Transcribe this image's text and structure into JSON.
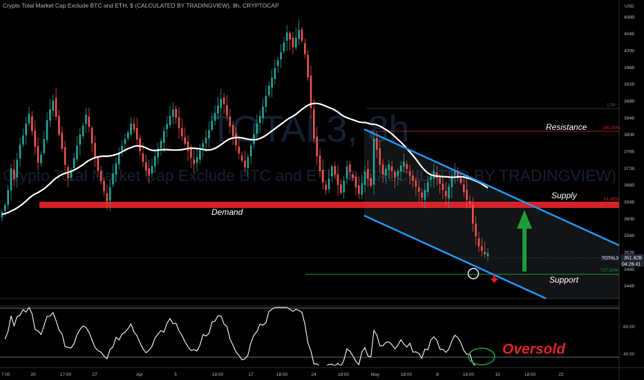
{
  "header": {
    "chart_title": "Crypto Total Market Cap Exclude BTC and ETH, $ (CALCULATED BY TRADINGVIEW), 8h, CRYPTOCAP"
  },
  "watermark": {
    "symbol": "TOTAL3, 8h",
    "description": "Crypto Total Market Cap Exclude BTC and ETH, $ (CALCULATED BY TRADINGVIEW)"
  },
  "annotations": {
    "resistance": "Resistance",
    "supply": "Supply",
    "demand": "Demand",
    "support": "Support",
    "oversold": "Oversold"
  },
  "price_badge": {
    "symbol": "TOTAL3",
    "value": "351.82B",
    "countdown": "04:26:41"
  },
  "fib_labels": {
    "top": "1.00",
    "level_100": "100.00%",
    "level_618": "61.80%",
    "level_727": "727.20%"
  },
  "colors": {
    "background": "#000000",
    "up_candle": "#26a69a",
    "down_candle": "#ef5350",
    "moving_average": "#ffffff",
    "channel": "#2196f3",
    "demand_zone": "#e0232a",
    "up_arrow": "#1b9e3a",
    "oversold": "#e0232a",
    "axis_text": "#b2b5be"
  },
  "chart_data": {
    "type": "candlestick",
    "symbol": "TOTAL3",
    "timeframe": "8h",
    "y_axis": {
      "unit": "USD",
      "range": [
        341,
        412
      ],
      "ticks": [
        "408B",
        "404B",
        "400B",
        "396B",
        "392B",
        "388B",
        "384B",
        "380B",
        "376B",
        "372B",
        "368B",
        "364B",
        "360B",
        "356B",
        "352B",
        "348B",
        "344B"
      ]
    },
    "x_axis": {
      "ticks": [
        "7:00",
        "20",
        "17:00",
        "27",
        "Apr",
        "5",
        "18:00",
        "17",
        "18:00",
        "24",
        "18:00",
        "May",
        "18:00",
        "8",
        "18:00",
        "15",
        "18:00",
        "22"
      ]
    },
    "levels": {
      "resistance": 381.5,
      "supply_demand": 364.5,
      "support": 348.3,
      "current_price": 351.82
    },
    "candles_close": [
      361.5,
      363.2,
      366.8,
      371.9,
      369.4,
      374.0,
      377.6,
      379.8,
      382.6,
      384.9,
      380.8,
      377.1,
      373.3,
      375.2,
      378.9,
      383.4,
      386.0,
      388.1,
      384.2,
      380.0,
      376.6,
      372.8,
      369.6,
      371.5,
      374.4,
      377.3,
      380.0,
      382.1,
      384.7,
      381.8,
      377.9,
      374.6,
      371.4,
      368.9,
      366.5,
      364.1,
      367.5,
      370.8,
      373.2,
      375.6,
      377.3,
      378.9,
      380.5,
      382.6,
      381.2,
      378.8,
      376.0,
      373.5,
      371.4,
      370.2,
      372.5,
      374.8,
      376.7,
      378.5,
      380.8,
      382.5,
      384.4,
      385.9,
      384.0,
      381.5,
      379.6,
      377.8,
      376.1,
      374.5,
      373.0,
      374.6,
      376.3,
      377.9,
      379.2,
      381.0,
      383.3,
      385.1,
      386.9,
      388.5,
      387.2,
      384.5,
      381.9,
      379.6,
      377.4,
      375.5,
      373.8,
      372.2,
      374.6,
      377.4,
      380.1,
      382.6,
      384.4,
      386.6,
      389.2,
      391.6,
      393.5,
      395.8,
      397.7,
      399.6,
      401.9,
      404.3,
      402.6,
      400.8,
      403.0,
      404.9,
      402.3,
      399.1,
      393.6,
      386.3,
      379.0,
      374.8,
      371.3,
      368.6,
      366.8,
      369.5,
      372.4,
      370.5,
      368.0,
      366.1,
      369.0,
      372.4,
      371.1,
      369.6,
      367.4,
      365.9,
      368.4,
      371.2,
      369.5,
      367.8,
      379.0,
      376.4,
      372.8,
      370.5,
      371.9,
      372.9,
      371.3,
      369.7,
      371.3,
      372.6,
      373.6,
      371.8,
      370.2,
      369.0,
      367.6,
      366.4,
      365.0,
      366.8,
      368.7,
      370.0,
      371.3,
      369.7,
      368.3,
      366.8,
      365.3,
      367.6,
      369.8,
      371.4,
      370.0,
      368.5,
      366.3,
      364.4,
      363.6,
      358.8,
      355.8,
      353.4,
      352.3,
      351.5,
      351.8
    ],
    "rsi": {
      "range": [
        30,
        75
      ],
      "ticks": [
        "60.00",
        "40.00"
      ]
    }
  }
}
